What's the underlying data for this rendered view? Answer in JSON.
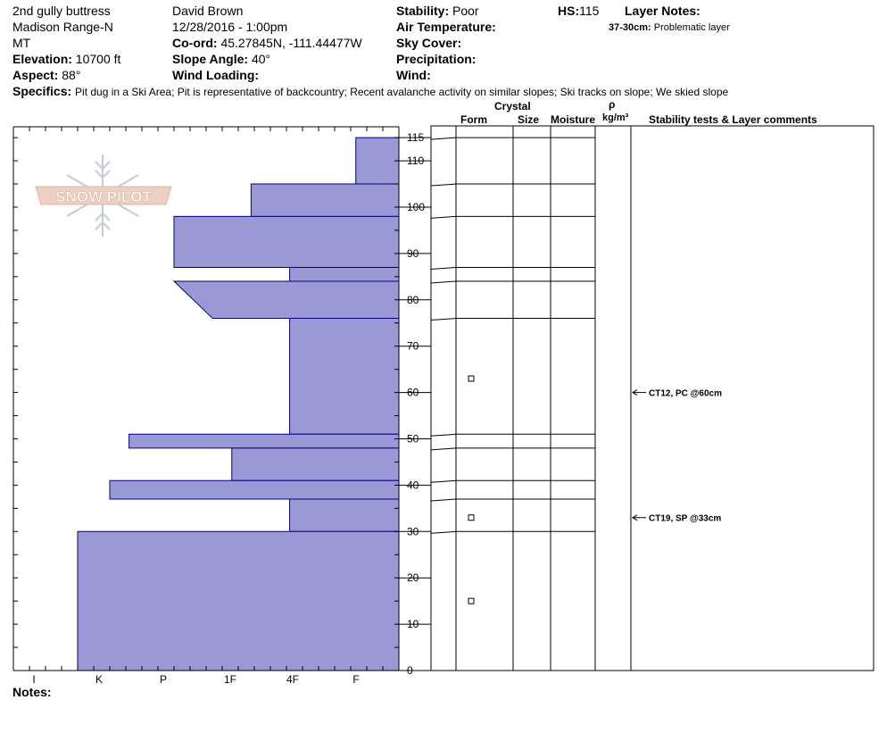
{
  "header": {
    "location": "2nd gully buttress",
    "range": "Madison Range-N",
    "state": "MT",
    "elevation_label": "Elevation:",
    "elevation_value": "10700 ft",
    "aspect_label": "Aspect:",
    "aspect_value": "88°",
    "observer": "David Brown",
    "datetime": "12/28/2016 - 1:00pm",
    "coord_label": "Co-ord:",
    "coord_value": "45.27845N, -111.44477W",
    "slope_label": "Slope Angle:",
    "slope_value": "40°",
    "wind_loading_label": "Wind Loading:",
    "stability_label": "Stability:",
    "stability_value": "Poor",
    "air_temp_label": "Air Temperature:",
    "sky_cover_label": "Sky Cover:",
    "precip_label": "Precipitation:",
    "wind_label": "Wind:",
    "hs_label": "HS:",
    "hs_value": "115",
    "layer_notes_label": "Layer Notes:",
    "layer_note_range": "37-30cm:",
    "layer_note_text": "Problematic layer",
    "specifics_label": "Specifics:",
    "specifics_text": "Pit dug in a Ski Area; Pit is representative of backcountry; Recent avalanche activity on similar slopes; Ski tracks on slope; We skied slope"
  },
  "columns": {
    "crystal": "Crystal",
    "form": "Form",
    "size": "Size",
    "moisture": "Moisture",
    "rho": "ρ",
    "density_unit": "kg/m³",
    "stability_tests": "Stability tests & Layer comments"
  },
  "notes_label": "Notes:",
  "logo_text": "SNOW PILOT",
  "colors": {
    "hardness_fill": "#9999d6",
    "hardness_stroke": "#000080"
  },
  "chart_data": {
    "type": "bar",
    "orientation": "horizontal",
    "ylabel": "",
    "y_ticks": [
      0,
      10,
      20,
      30,
      40,
      50,
      60,
      70,
      80,
      90,
      100,
      110,
      115
    ],
    "ylim": [
      0,
      115
    ],
    "hardness_categories": [
      "I",
      "K",
      "P",
      "1F",
      "4F",
      "F"
    ],
    "hardness_scale_note": "profile hardness; 0 = left axis, 6 = F",
    "layers": [
      {
        "top": 115,
        "bottom": 105,
        "hardness_top": 0.67,
        "hardness_bottom": 0.67
      },
      {
        "top": 105,
        "bottom": 98,
        "hardness_top": 2.3,
        "hardness_bottom": 2.3
      },
      {
        "top": 98,
        "bottom": 87,
        "hardness_top": 3.5,
        "hardness_bottom": 3.5
      },
      {
        "top": 87,
        "bottom": 84,
        "hardness_top": 1.7,
        "hardness_bottom": 1.7
      },
      {
        "top": 84,
        "bottom": 76,
        "hardness_top": 3.5,
        "hardness_bottom": 2.9
      },
      {
        "top": 76,
        "bottom": 51,
        "hardness_top": 1.7,
        "hardness_bottom": 1.7
      },
      {
        "top": 51,
        "bottom": 48,
        "hardness_top": 4.2,
        "hardness_bottom": 4.2
      },
      {
        "top": 48,
        "bottom": 41,
        "hardness_top": 2.6,
        "hardness_bottom": 2.6
      },
      {
        "top": 41,
        "bottom": 37,
        "hardness_top": 4.5,
        "hardness_bottom": 4.5
      },
      {
        "top": 37,
        "bottom": 30,
        "hardness_top": 1.7,
        "hardness_bottom": 1.7
      },
      {
        "top": 30,
        "bottom": 0,
        "hardness_top": 5.0,
        "hardness_bottom": 5.0
      }
    ],
    "layer_boundaries": [
      115,
      105,
      98,
      87,
      84,
      76,
      51,
      48,
      41,
      37,
      30
    ],
    "crystal_symbols": [
      63,
      33,
      15
    ],
    "stability_tests": [
      {
        "depth": 60,
        "label": "CT12, PC @60cm"
      },
      {
        "depth": 33,
        "label": "CT19, SP @33cm"
      }
    ]
  }
}
